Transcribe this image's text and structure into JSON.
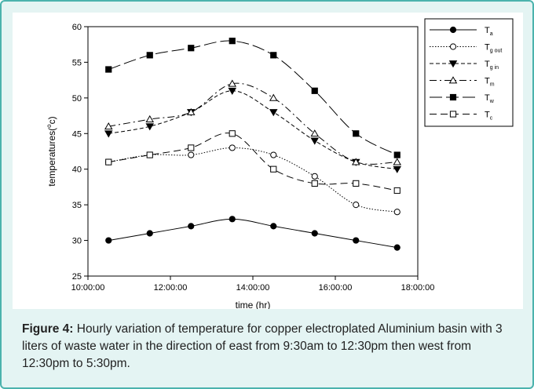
{
  "chart_data": {
    "type": "line",
    "xlabel": "time (hr)",
    "ylabel": "temperatures(°c)",
    "xlim": [
      "10:00:00",
      "18:00:00"
    ],
    "ylim": [
      25,
      60
    ],
    "grid": false,
    "legend_position": "top-right",
    "xticks": [
      "10:00:00",
      "12:00:00",
      "14:00:00",
      "16:00:00",
      "18:00:00"
    ],
    "yticks": [
      25,
      30,
      35,
      40,
      45,
      50,
      55,
      60
    ],
    "x": [
      "10:30:00",
      "11:30:00",
      "12:30:00",
      "13:30:00",
      "14:30:00",
      "15:30:00",
      "16:30:00",
      "17:30:00"
    ],
    "series": [
      {
        "name": "T",
        "sub": "a",
        "marker": "filled-circle",
        "dash": "solid",
        "values": [
          30,
          31,
          32,
          33,
          32,
          31,
          30,
          29
        ]
      },
      {
        "name": "T",
        "sub": "g out",
        "marker": "open-circle",
        "dash": "dotted",
        "values": [
          41,
          42,
          42,
          43,
          42,
          39,
          35,
          34
        ]
      },
      {
        "name": "T",
        "sub": "g in",
        "marker": "filled-triangle-down",
        "dash": "short-dash",
        "values": [
          45,
          46,
          48,
          51,
          48,
          44,
          41,
          40
        ]
      },
      {
        "name": "T",
        "sub": "m",
        "marker": "open-triangle-up",
        "dash": "dash-dot",
        "values": [
          46,
          47,
          48,
          52,
          50,
          45,
          41,
          41
        ]
      },
      {
        "name": "T",
        "sub": "w",
        "marker": "filled-square",
        "dash": "long-dash",
        "values": [
          54,
          56,
          57,
          58,
          56,
          51,
          45,
          42
        ]
      },
      {
        "name": "T",
        "sub": "c",
        "marker": "open-square",
        "dash": "medium-dash",
        "values": [
          41,
          42,
          43,
          45,
          40,
          38,
          38,
          37
        ]
      }
    ]
  },
  "caption": {
    "label": "Figure 4:",
    "text": " Hourly variation of temperature for copper electroplated Aluminium basin with 3 liters of waste water in the direction of east from 9:30am to 12:30pm then west from 12:30pm to 5:30pm."
  }
}
